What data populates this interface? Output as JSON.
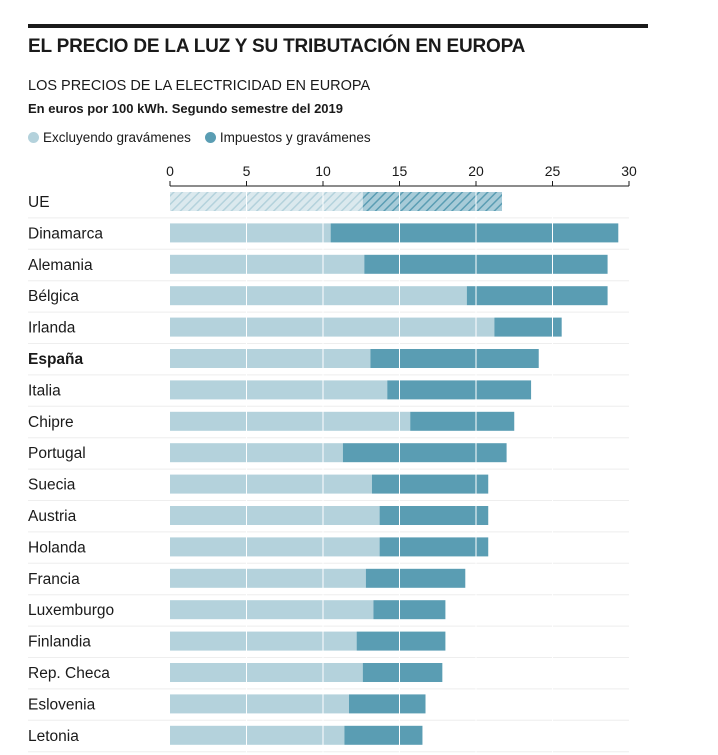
{
  "header": {
    "title": "EL PRECIO DE LA LUZ Y SU TRIBUTACIÓN EN EUROPA",
    "subtitle": "LOS PRECIOS DE LA ELECTRICIDAD EN EUROPA",
    "units": "En euros por 100 kWh. Segundo semestre del 2019"
  },
  "colors": {
    "base": "#b4d2dc",
    "tax": "#5a9db3",
    "grid": "#ffffff",
    "text": "#1a1a1a"
  },
  "chart_data": {
    "type": "bar",
    "orientation": "horizontal",
    "stacked": true,
    "xlim": [
      0,
      30
    ],
    "xticks": [
      "0",
      "5",
      "10",
      "15",
      "20",
      "25",
      "30"
    ],
    "grid": true,
    "legend_position": "top-left",
    "highlight": "España",
    "hatched": "UE",
    "categories": [
      "UE",
      "Dinamarca",
      "Alemania",
      "Bélgica",
      "Irlanda",
      "España",
      "Italia",
      "Chipre",
      "Portugal",
      "Suecia",
      "Austria",
      "Holanda",
      "Francia",
      "Luxemburgo",
      "Finlandia",
      "Rep. Checa",
      "Eslovenia",
      "Letonia"
    ],
    "series": [
      {
        "name": "Excluyendo gravámenes",
        "values": [
          12.6,
          10.5,
          12.7,
          19.4,
          21.2,
          13.1,
          14.2,
          15.7,
          11.3,
          13.2,
          13.7,
          13.7,
          12.8,
          13.3,
          12.2,
          12.6,
          11.7,
          11.4
        ]
      },
      {
        "name": "Impuestos y gravámenes",
        "values": [
          9.1,
          18.8,
          15.9,
          9.2,
          4.4,
          11.0,
          9.4,
          6.8,
          10.7,
          7.6,
          7.1,
          7.1,
          6.5,
          4.7,
          5.8,
          5.2,
          5.0,
          5.1
        ]
      }
    ]
  }
}
